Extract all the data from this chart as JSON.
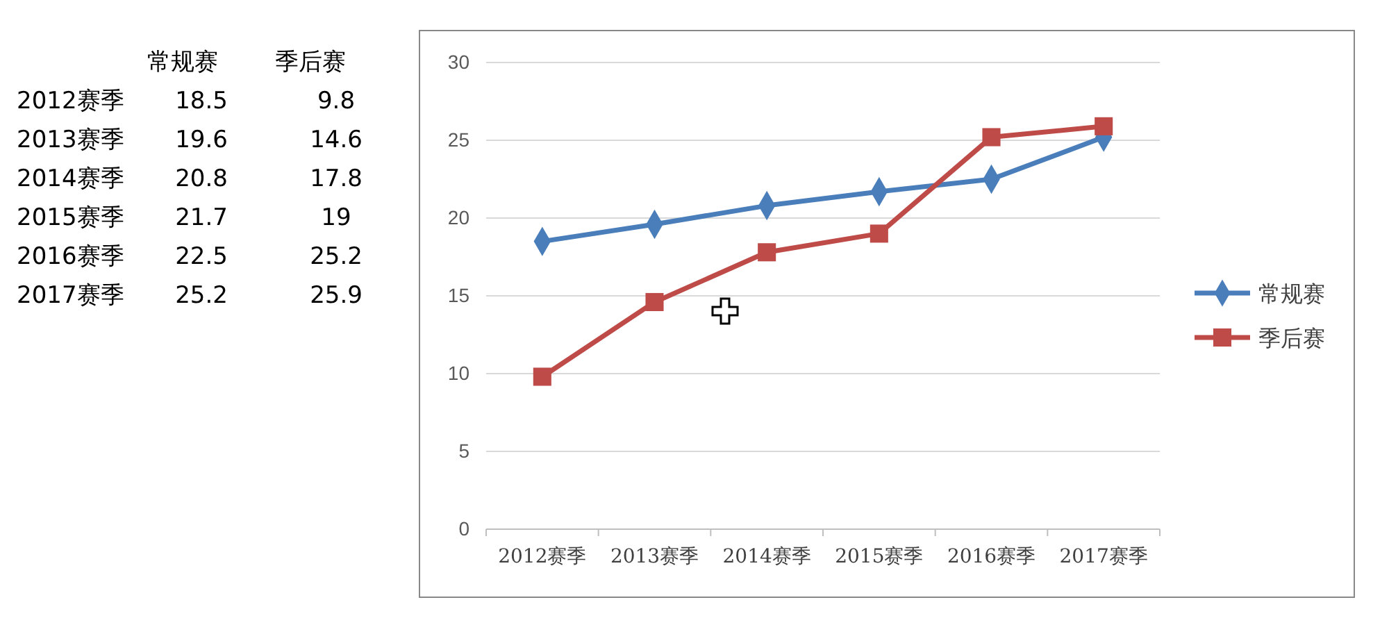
{
  "chart_data": [
    {
      "type": "heatmap",
      "categories": [
        "常规赛",
        "季后赛"
      ],
      "y_categories": [
        "2012赛季",
        "2013赛季",
        "2014赛季",
        "2015赛季",
        "2016赛季",
        "2017赛季"
      ],
      "cells": [
        [
          18.5,
          9.8
        ],
        [
          19.6,
          14.6
        ],
        [
          20.8,
          17.8
        ],
        [
          21.7,
          19
        ],
        [
          22.5,
          25.2
        ],
        [
          25.2,
          25.9
        ]
      ],
      "data_labels": true
    },
    {
      "type": "line",
      "categories": [
        "2012赛季",
        "2013赛季",
        "2014赛季",
        "2015赛季",
        "2016赛季",
        "2017赛季"
      ],
      "series": [
        {
          "name": "常规赛",
          "color": "#4a7ebb",
          "values": [
            18.5,
            19.6,
            20.8,
            21.7,
            22.5,
            25.2
          ],
          "marker": "diamond"
        },
        {
          "name": "季后赛",
          "color": "#be4b48",
          "values": [
            9.8,
            14.6,
            17.8,
            19,
            25.2,
            25.9
          ],
          "marker": "square"
        }
      ],
      "ylim": [
        0,
        30
      ],
      "yticks": [
        0,
        5,
        10,
        15,
        20,
        25,
        30
      ],
      "grid": "y",
      "legend": "right",
      "line_style": "solid"
    }
  ]
}
